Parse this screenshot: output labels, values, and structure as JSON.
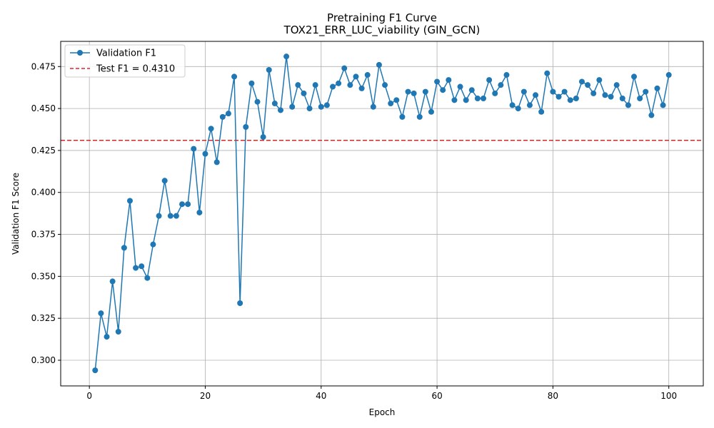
{
  "chart_data": {
    "type": "line",
    "title": "Pretraining F1 Curve",
    "subtitle": "TOX21_ERR_LUC_viability (GIN_GCN)",
    "xlabel": "Epoch",
    "ylabel": "Validation F1 Score",
    "xlim": [
      -4.95,
      105.95
    ],
    "ylim": [
      0.2847,
      0.49
    ],
    "xticks": [
      0,
      20,
      40,
      60,
      80,
      100
    ],
    "yticks": [
      0.3,
      0.325,
      0.35,
      0.375,
      0.4,
      0.425,
      0.45,
      0.475
    ],
    "grid": true,
    "legend_position": "top-left",
    "series": [
      {
        "name": "Validation F1",
        "color": "#1f77b4",
        "marker": "circle",
        "x": [
          1,
          2,
          3,
          4,
          5,
          6,
          7,
          8,
          9,
          10,
          11,
          12,
          13,
          14,
          15,
          16,
          17,
          18,
          19,
          20,
          21,
          22,
          23,
          24,
          25,
          26,
          27,
          28,
          29,
          30,
          31,
          32,
          33,
          34,
          35,
          36,
          37,
          38,
          39,
          40,
          41,
          42,
          43,
          44,
          45,
          46,
          47,
          48,
          49,
          50,
          51,
          52,
          53,
          54,
          55,
          56,
          57,
          58,
          59,
          60,
          61,
          62,
          63,
          64,
          65,
          66,
          67,
          68,
          69,
          70,
          71,
          72,
          73,
          74,
          75,
          76,
          77,
          78,
          79,
          80,
          81,
          82,
          83,
          84,
          85,
          86,
          87,
          88,
          89,
          90,
          91,
          92,
          93,
          94,
          95,
          96,
          97,
          98,
          99,
          100
        ],
        "values": [
          0.294,
          0.328,
          0.314,
          0.347,
          0.317,
          0.367,
          0.395,
          0.355,
          0.356,
          0.349,
          0.369,
          0.386,
          0.407,
          0.386,
          0.386,
          0.393,
          0.393,
          0.426,
          0.388,
          0.423,
          0.438,
          0.418,
          0.445,
          0.447,
          0.469,
          0.334,
          0.439,
          0.465,
          0.454,
          0.433,
          0.473,
          0.453,
          0.449,
          0.481,
          0.451,
          0.464,
          0.459,
          0.45,
          0.464,
          0.451,
          0.452,
          0.463,
          0.465,
          0.474,
          0.464,
          0.469,
          0.462,
          0.47,
          0.451,
          0.476,
          0.464,
          0.453,
          0.455,
          0.445,
          0.46,
          0.459,
          0.445,
          0.46,
          0.448,
          0.466,
          0.461,
          0.467,
          0.455,
          0.463,
          0.455,
          0.461,
          0.456,
          0.456,
          0.467,
          0.459,
          0.464,
          0.47,
          0.452,
          0.45,
          0.46,
          0.452,
          0.458,
          0.448,
          0.471,
          0.46,
          0.457,
          0.46,
          0.455,
          0.456,
          0.466,
          0.464,
          0.459,
          0.467,
          0.458,
          0.457,
          0.464,
          0.456,
          0.452,
          0.469,
          0.456,
          0.46,
          0.446,
          0.462,
          0.452,
          0.47
        ]
      }
    ],
    "reference_lines": [
      {
        "name": "Test F1 = 0.4310",
        "value": 0.431,
        "orientation": "horizontal",
        "color": "#d62728",
        "style": "dashed"
      }
    ]
  }
}
